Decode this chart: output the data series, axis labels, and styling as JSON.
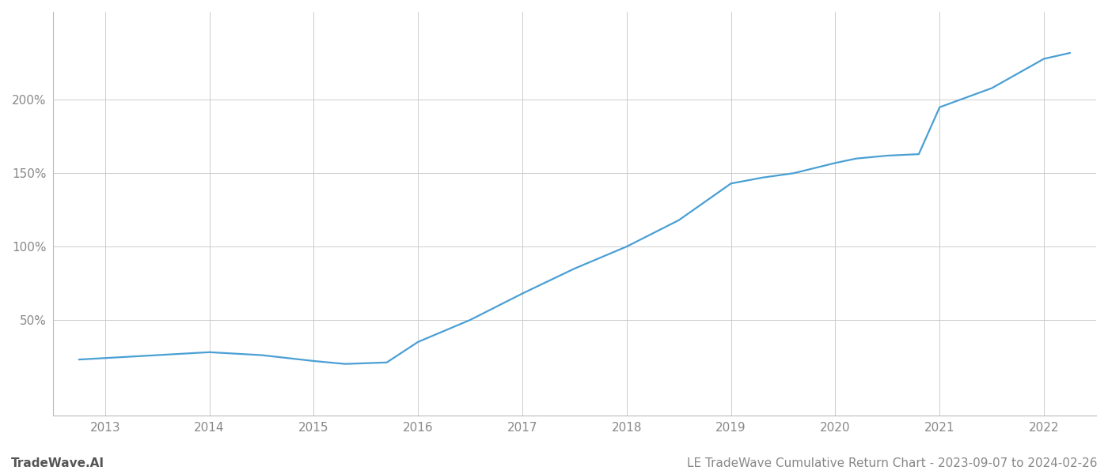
{
  "title": "LE TradeWave Cumulative Return Chart - 2023-09-07 to 2024-02-26",
  "watermark": "TradeWave.AI",
  "line_color": "#4a9fd4",
  "background_color": "#ffffff",
  "grid_color": "#cccccc",
  "x_years": [
    2012.75,
    2013.0,
    2013.5,
    2014.0,
    2014.5,
    2015.0,
    2015.3,
    2015.7,
    2016.0,
    2016.5,
    2017.0,
    2017.5,
    2018.0,
    2018.5,
    2019.0,
    2019.3,
    2019.6,
    2020.0,
    2020.2,
    2020.5,
    2020.8,
    2021.0,
    2021.5,
    2022.0,
    2022.25
  ],
  "y_values": [
    23,
    24,
    26,
    28,
    26,
    22,
    20,
    21,
    35,
    50,
    68,
    85,
    100,
    118,
    143,
    147,
    150,
    157,
    160,
    162,
    163,
    195,
    208,
    228,
    232
  ],
  "yticks": [
    50,
    100,
    150,
    200
  ],
  "ytick_labels": [
    "50%",
    "100%",
    "150%",
    "200%"
  ],
  "xlim": [
    2012.5,
    2022.5
  ],
  "ylim": [
    -15,
    260
  ],
  "xtick_years": [
    2013,
    2014,
    2015,
    2016,
    2017,
    2018,
    2019,
    2020,
    2021,
    2022
  ],
  "title_fontsize": 11,
  "watermark_fontsize": 11,
  "tick_fontsize": 11,
  "line_width": 1.6
}
